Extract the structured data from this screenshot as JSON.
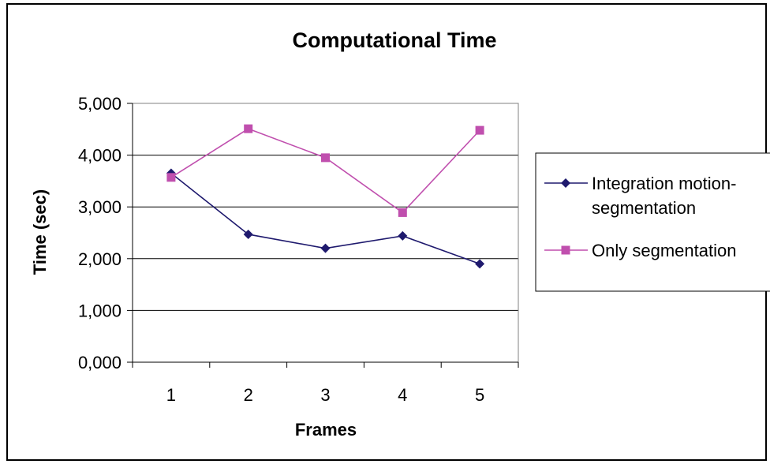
{
  "chart_data": {
    "type": "line",
    "title": "Computational Time",
    "xlabel": "Frames",
    "ylabel": "Time (sec)",
    "categories": [
      "1",
      "2",
      "3",
      "4",
      "5"
    ],
    "ylim": [
      0,
      5000
    ],
    "yticks": [
      0,
      1000,
      2000,
      3000,
      4000,
      5000
    ],
    "ytick_labels": [
      "0,000",
      "1,000",
      "2,000",
      "3,000",
      "4,000",
      "5,000"
    ],
    "grid": true,
    "legend_position": "right",
    "series": [
      {
        "name": "Integration motion-segmentation",
        "legend_lines": [
          "Integration motion-",
          "segmentation"
        ],
        "values": [
          3650,
          2470,
          2200,
          2440,
          1900
        ],
        "color": "#1f1a6e",
        "marker": "diamond"
      },
      {
        "name": "Only segmentation",
        "legend_lines": [
          "Only segmentation"
        ],
        "values": [
          3570,
          4510,
          3950,
          2890,
          4480
        ],
        "color": "#c04fae",
        "marker": "square"
      }
    ]
  }
}
